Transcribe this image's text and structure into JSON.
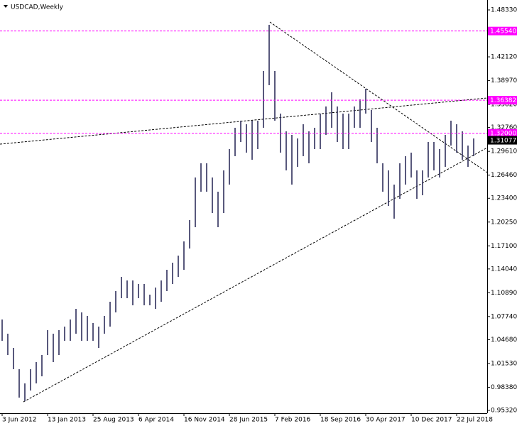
{
  "chart_data": {
    "type": "ohlc",
    "title": "USDCAD,Weekly",
    "categories": [
      "3 Jun 2012",
      null,
      null,
      null,
      null,
      null,
      null,
      null,
      "13 Jan 2013",
      null,
      null,
      null,
      null,
      null,
      null,
      null,
      "25 Aug 2013",
      null,
      null,
      null,
      null,
      null,
      null,
      null,
      "6 Apr 2014",
      null,
      null,
      null,
      null,
      null,
      null,
      null,
      "16 Nov 2014",
      null,
      null,
      null,
      null,
      null,
      null,
      null,
      "28 Jun 2015",
      null,
      null,
      null,
      null,
      null,
      null,
      null,
      "7 Feb 2016",
      null,
      null,
      null,
      null,
      null,
      null,
      null,
      "18 Sep 2016",
      null,
      null,
      null,
      null,
      null,
      null,
      null,
      "30 Apr 2017",
      null,
      null,
      null,
      null,
      null,
      null,
      null,
      "10 Dec 2017",
      null,
      null,
      null,
      null,
      null,
      null,
      null,
      "22 Jul 2018",
      null,
      null,
      null
    ],
    "high": [
      1.0735,
      1.0547,
      1.0359,
      1.0077,
      0.9889,
      1.0077,
      1.0171,
      1.0265,
      1.0594,
      1.0547,
      1.0594,
      1.0641,
      1.0735,
      1.0876,
      1.0829,
      1.0782,
      1.0688,
      1.0641,
      1.0782,
      1.097,
      1.1111,
      1.1299,
      1.1252,
      1.1252,
      1.1205,
      1.1205,
      1.1064,
      1.1158,
      1.1252,
      1.1393,
      1.1487,
      1.1581,
      1.1769,
      1.2051,
      1.2615,
      1.2803,
      1.2803,
      1.2615,
      1.2427,
      1.2709,
      1.2991,
      1.3273,
      1.3367,
      1.332,
      1.3367,
      1.3367,
      1.4025,
      1.4636,
      1.4025,
      1.3461,
      1.3226,
      1.3179,
      1.3132,
      1.332,
      1.3226,
      1.3273,
      1.3461,
      1.3555,
      1.3743,
      1.3555,
      1.3461,
      1.3461,
      1.3555,
      1.3649,
      1.379,
      1.3508,
      1.3273,
      1.2803,
      1.2709,
      1.2521,
      1.2803,
      1.2897,
      1.2944,
      1.2709,
      1.2709,
      1.3085,
      1.3085,
      1.2991,
      1.3179,
      1.3367,
      1.332,
      1.3226,
      1.3038,
      1.3132
    ],
    "low": [
      1.0453,
      1.0265,
      1.0077,
      0.9701,
      0.9654,
      0.9795,
      0.9889,
      0.9983,
      1.0265,
      1.0171,
      1.0265,
      1.0453,
      1.0453,
      1.0547,
      1.0453,
      1.0453,
      1.0453,
      1.0359,
      1.0547,
      1.0641,
      1.0829,
      1.1017,
      1.1017,
      1.0923,
      1.1017,
      1.0923,
      1.0923,
      1.0876,
      1.097,
      1.1111,
      1.1205,
      1.1299,
      1.1393,
      1.1675,
      1.1957,
      1.2427,
      1.2427,
      1.2145,
      1.1957,
      1.2145,
      1.2521,
      1.2897,
      1.3085,
      1.2944,
      1.285,
      1.2991,
      1.3273,
      1.3837,
      1.3367,
      1.2944,
      1.2709,
      1.2521,
      1.2756,
      1.2897,
      1.2803,
      1.2991,
      1.2991,
      1.3179,
      1.3273,
      1.3085,
      1.2991,
      1.2991,
      1.3273,
      1.3273,
      1.3461,
      1.3085,
      1.2803,
      1.2427,
      1.2239,
      1.207,
      1.2333,
      1.2521,
      1.2615,
      1.2333,
      1.238,
      1.2615,
      1.2709,
      1.2615,
      1.2756,
      1.3038,
      1.2944,
      1.285,
      1.2756,
      1.2897
    ],
    "color": "#2e2e5c",
    "ylim": [
      0.9532,
      1.4833
    ],
    "yticks": [
      {
        "value": 1.4833,
        "label": "1.48330"
      },
      {
        "value": 1.4212,
        "label": "1.42120"
      },
      {
        "value": 1.3897,
        "label": "1.38970"
      },
      {
        "value": 1.3582,
        "label": "1.35820"
      },
      {
        "value": 1.3276,
        "label": "1.32760"
      },
      {
        "value": 1.2961,
        "label": "1.29610"
      },
      {
        "value": 1.2646,
        "label": "1.26460"
      },
      {
        "value": 1.234,
        "label": "1.23400"
      },
      {
        "value": 1.2025,
        "label": "1.20250"
      },
      {
        "value": 1.171,
        "label": "1.17100"
      },
      {
        "value": 1.1404,
        "label": "1.14040"
      },
      {
        "value": 1.1089,
        "label": "1.10890"
      },
      {
        "value": 1.0774,
        "label": "1.07740"
      },
      {
        "value": 1.0468,
        "label": "1.04680"
      },
      {
        "value": 1.0153,
        "label": "1.01530"
      },
      {
        "value": 0.9838,
        "label": "0.98380"
      },
      {
        "value": 0.9532,
        "label": "0.95320"
      }
    ],
    "levels": [
      {
        "value": 1.4554,
        "label": "1.45540"
      },
      1.36382,
      {
        "value": 1.32,
        "label": "1.32000"
      }
    ],
    "level_color": "#ff00ff",
    "price": 1.31077
  }
}
